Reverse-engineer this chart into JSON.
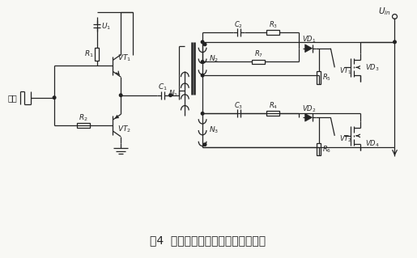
{
  "title": "图4  新型的不对称半桥隔离驱动电路",
  "title_fontsize": 10,
  "bg_color": "#f8f8f4",
  "line_color": "#222222",
  "text_color": "#222222",
  "fig_width": 5.15,
  "fig_height": 3.19
}
